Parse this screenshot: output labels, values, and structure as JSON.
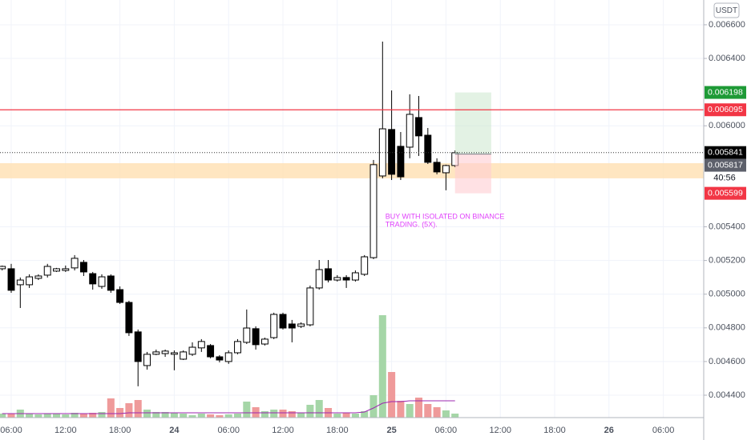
{
  "chart_data": {
    "type": "candlestick",
    "currency": "USDT",
    "xlim": [
      4.76,
      82.46
    ],
    "xticks": [
      {
        "value": 6,
        "label": "06:00"
      },
      {
        "value": 12,
        "label": "12:00"
      },
      {
        "value": 18,
        "label": "18:00"
      },
      {
        "value": 24,
        "label": "24"
      },
      {
        "value": 30,
        "label": "06:00"
      },
      {
        "value": 36,
        "label": "12:00"
      },
      {
        "value": 42,
        "label": "18:00"
      },
      {
        "value": 48,
        "label": "25"
      },
      {
        "value": 54,
        "label": "06:00"
      },
      {
        "value": 60,
        "label": "12:00"
      },
      {
        "value": 66,
        "label": "18:00"
      },
      {
        "value": 72,
        "label": "26"
      },
      {
        "value": 78,
        "label": "06:00"
      }
    ],
    "ylim": [
      0.004267,
      0.006747
    ],
    "yticks": [
      {
        "value": 0.0066,
        "label": "0.006600"
      },
      {
        "value": 0.0064,
        "label": "0.006400"
      },
      {
        "value": 0.006,
        "label": "0.006000"
      },
      {
        "value": 0.0054,
        "label": "0.005400"
      },
      {
        "value": 0.0052,
        "label": "0.005200"
      },
      {
        "value": 0.005,
        "label": "0.005000"
      },
      {
        "value": 0.0048,
        "label": "0.004800"
      },
      {
        "value": 0.0046,
        "label": "0.004600"
      },
      {
        "value": 0.0044,
        "label": "0.004400"
      }
    ],
    "grid": true,
    "x": [
      5,
      6,
      7,
      8,
      9,
      10,
      11,
      12,
      13,
      14,
      15,
      16,
      17,
      18,
      19,
      20,
      21,
      22,
      23,
      24,
      25,
      26,
      27,
      28,
      29,
      30,
      31,
      32,
      33,
      34,
      35,
      36,
      37,
      38,
      39,
      40,
      41,
      42,
      43,
      44,
      45,
      46,
      47,
      48,
      49,
      50,
      51,
      52,
      53,
      54,
      55
    ],
    "open": [
      0.005151,
      0.005151,
      0.005056,
      0.005056,
      0.005094,
      0.005113,
      0.005137,
      0.005141,
      0.005156,
      0.005189,
      0.005122,
      0.005046,
      0.005108,
      0.005027,
      0.004951,
      0.004776,
      0.004576,
      0.004643,
      0.004647,
      0.004643,
      0.004614,
      0.004643,
      0.004681,
      0.004695,
      0.004628,
      0.0046,
      0.004652,
      0.004714,
      0.004795,
      0.004704,
      0.004742,
      0.00488,
      0.004823,
      0.004809,
      0.004818,
      0.005037,
      0.005151,
      0.005084,
      0.005099,
      0.005084,
      0.005118,
      0.005217,
      0.005702,
      0.005978,
      0.005878,
      0.005873,
      0.006049,
      0.005944,
      0.005783,
      0.005721,
      0.005764
    ],
    "high": [
      0.00517,
      0.00518,
      0.005099,
      0.005118,
      0.005118,
      0.00518,
      0.005156,
      0.00517,
      0.005232,
      0.005203,
      0.005132,
      0.005118,
      0.005118,
      0.005046,
      0.004961,
      0.00479,
      0.004657,
      0.004671,
      0.004671,
      0.004666,
      0.004666,
      0.004714,
      0.004733,
      0.004704,
      0.004638,
      0.004666,
      0.004733,
      0.004909,
      0.004809,
      0.004742,
      0.00489,
      0.00489,
      0.004847,
      0.004833,
      0.005051,
      0.005203,
      0.005203,
      0.005113,
      0.005113,
      0.005141,
      0.005232,
      0.005797,
      0.0065,
      0.00621,
      0.005963,
      0.006187,
      0.006177,
      0.005987,
      0.005807,
      0.005769,
      0.005854
    ],
    "low": [
      0.005141,
      0.005008,
      0.004918,
      0.005037,
      0.005084,
      0.005099,
      0.005132,
      0.005132,
      0.005141,
      0.005108,
      0.005027,
      0.005032,
      0.005008,
      0.004942,
      0.004752,
      0.004453,
      0.004552,
      0.004638,
      0.004628,
      0.004548,
      0.004609,
      0.004633,
      0.004657,
      0.004619,
      0.004595,
      0.004586,
      0.004643,
      0.004704,
      0.004671,
      0.004695,
      0.004733,
      0.00479,
      0.004714,
      0.004799,
      0.004809,
      0.005027,
      0.00507,
      0.005075,
      0.005037,
      0.005075,
      0.005108,
      0.005208,
      0.005688,
      0.005678,
      0.005678,
      0.005807,
      0.005821,
      0.005773,
      0.005712,
      0.005617,
      0.005754
    ],
    "close": [
      0.005165,
      0.005023,
      0.005084,
      0.005103,
      0.005108,
      0.005165,
      0.005151,
      0.005151,
      0.005213,
      0.005132,
      0.005061,
      0.005103,
      0.005023,
      0.004951,
      0.004771,
      0.0046,
      0.004643,
      0.004657,
      0.004662,
      0.004652,
      0.004657,
      0.004685,
      0.004719,
      0.004628,
      0.004609,
      0.004652,
      0.004719,
      0.004799,
      0.0047,
      0.004733,
      0.00488,
      0.004799,
      0.004799,
      0.004823,
      0.005037,
      0.005146,
      0.005084,
      0.005099,
      0.005084,
      0.005127,
      0.005222,
      0.005769,
      0.005982,
      0.005712,
      0.005697,
      0.006068,
      0.00594,
      0.005783,
      0.005726,
      0.005764,
      0.00584
    ],
    "volume": [
      5,
      5,
      10,
      5,
      4,
      5,
      5,
      4,
      6,
      5,
      6,
      7,
      24,
      12,
      18,
      22,
      10,
      7,
      7,
      6,
      5,
      3,
      5,
      4,
      3,
      4,
      5,
      20,
      13,
      8,
      10,
      10,
      8,
      6,
      16,
      22,
      12,
      5,
      6,
      5,
      8,
      28,
      128,
      57,
      21,
      17,
      25,
      17,
      13,
      9,
      5
    ],
    "volume_ma": [
      5,
      5,
      5,
      5,
      5,
      5,
      5,
      5,
      5,
      5,
      5,
      5,
      5,
      5,
      6,
      6,
      6,
      6,
      6,
      6,
      6,
      6,
      6,
      6,
      6,
      6,
      6,
      6,
      6,
      6,
      6,
      6,
      6,
      6,
      6,
      6,
      6,
      6,
      6,
      6,
      7,
      12,
      18,
      20,
      20,
      21,
      21,
      21,
      21,
      21,
      21
    ],
    "up_color": "#ffffff",
    "down_color": "#000000",
    "volume_up_color": "#a5d6a7",
    "volume_down_color": "#ef9a9a",
    "volume_ma_color": "#9c27b0",
    "resistance": {
      "value": 0.006095,
      "color": "#f23645"
    },
    "zone": {
      "range": [
        0.005688,
        0.005778
      ],
      "color": "#ffe0b2"
    },
    "position": {
      "x": [
        55,
        59
      ],
      "entry": 0.005832,
      "target": 0.006198,
      "stop": 0.005599
    },
    "current_price": 0.005841,
    "countdown": "40:56",
    "price_tags": [
      {
        "value": 0.006198,
        "label": "0.006198",
        "color": "#1e9a36"
      },
      {
        "value": 0.006095,
        "label": "0.006095",
        "color": "#f23645"
      },
      {
        "value": 0.005841,
        "label": "0.005841",
        "color": "#000000"
      },
      {
        "value": 0.005817,
        "label": "0.005817",
        "color": "#5d606b"
      },
      {
        "value": 0.005599,
        "label": "0.005599",
        "color": "#f23645"
      }
    ],
    "annotation": {
      "lines": [
        "BUY WITH ISOLATED ON BINANCE",
        "TRADING. (5X)."
      ],
      "color": "#e040fb",
      "x": 47.3,
      "y": 0.00546
    }
  }
}
